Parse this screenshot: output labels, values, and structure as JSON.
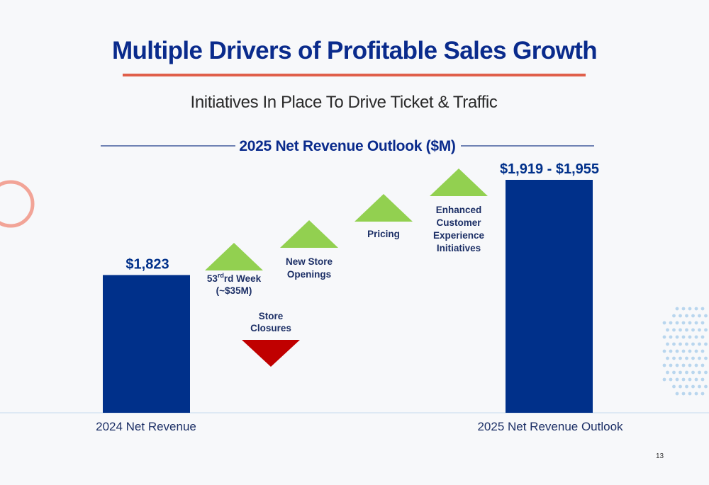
{
  "slide": {
    "title": "Multiple Drivers of Profitable Sales Growth",
    "subtitle": "Initiatives In Place To Drive Ticket & Traffic",
    "page_number": "13"
  },
  "colors": {
    "bar": "#00308a",
    "increase": "#92d050",
    "decrease": "#c00000",
    "title": "#0a2b8c",
    "accent_line": "#e05f4a"
  },
  "chart_data": {
    "type": "bar",
    "title": "2025 Net Revenue Outlook ($M)",
    "categories": [
      "2024 Net Revenue",
      "53rd Week (~$35M)",
      "Store Closures",
      "New Store Openings",
      "Pricing",
      "Enhanced Customer Experience Initiatives",
      "2025 Net Revenue Outlook"
    ],
    "bars": [
      {
        "label": "2024 Net Revenue",
        "value": 1823,
        "value_label": "$1,823"
      },
      {
        "label": "2025 Net Revenue Outlook",
        "value_low": 1919,
        "value_high": 1955,
        "value_label": "$1,919 - $1,955"
      }
    ],
    "drivers": [
      {
        "lines": [
          "53rd Week",
          "(~$35M)"
        ],
        "superscript": "rd",
        "direction": "up",
        "approx_value": 35
      },
      {
        "lines": [
          "Store",
          "Closures"
        ],
        "direction": "down"
      },
      {
        "lines": [
          "New Store",
          "Openings"
        ],
        "direction": "up"
      },
      {
        "lines": [
          "Pricing"
        ],
        "direction": "up"
      },
      {
        "lines": [
          "Enhanced",
          "Customer",
          "Experience",
          "Initiatives"
        ],
        "direction": "up"
      }
    ],
    "y_unit": "$M",
    "grid": false,
    "legend": "none"
  }
}
